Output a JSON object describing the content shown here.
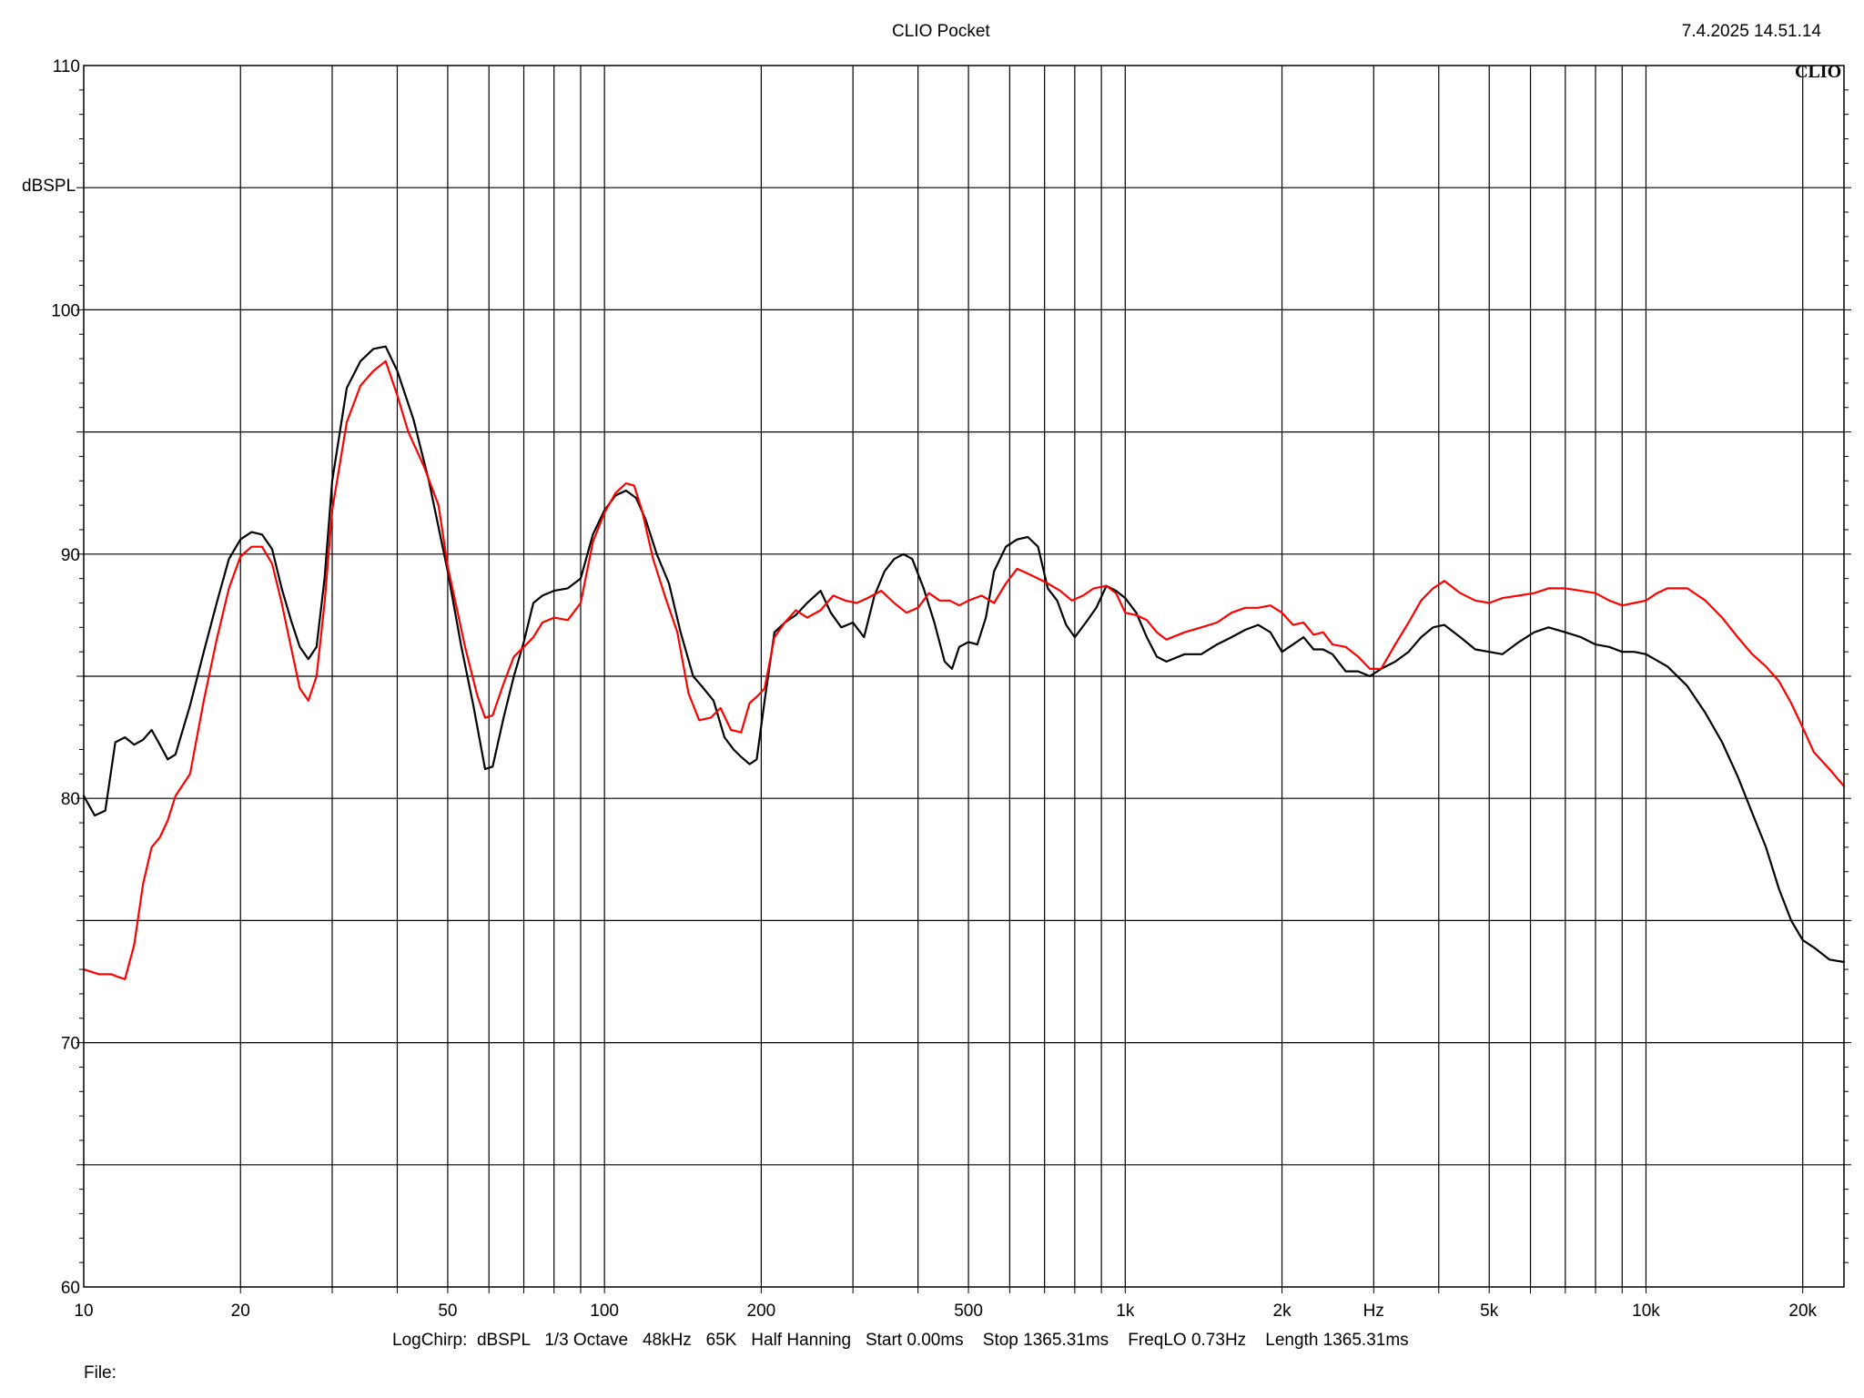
{
  "header": {
    "title": "CLIO Pocket",
    "timestamp": "7.4.2025 14.51.14",
    "logo": "CLIO"
  },
  "footer": {
    "settings": "LogChirp:  dBSPL   1/3 Octave   48kHz   65K   Half Hanning   Start 0.00ms    Stop 1365.31ms    FreqLO 0.73Hz    Length 1365.31ms",
    "file_label": "File:"
  },
  "colors": {
    "series_black": "#000000",
    "series_red": "#ff0000",
    "grid": "#000000"
  },
  "chart_data": {
    "type": "line",
    "title": "CLIO Pocket",
    "xlabel": "Hz",
    "ylabel": "dBSPL",
    "xscale": "log",
    "xlim": [
      10,
      24000
    ],
    "ylim": [
      60,
      110
    ],
    "grid": true,
    "x_ticks": [
      {
        "v": 10,
        "label": "10"
      },
      {
        "v": 20,
        "label": "20"
      },
      {
        "v": 50,
        "label": "50"
      },
      {
        "v": 100,
        "label": "100"
      },
      {
        "v": 200,
        "label": "200"
      },
      {
        "v": 500,
        "label": "500"
      },
      {
        "v": 1000,
        "label": "1k"
      },
      {
        "v": 2000,
        "label": "2k"
      },
      {
        "v": 5000,
        "label": "5k"
      },
      {
        "v": 10000,
        "label": "10k"
      },
      {
        "v": 20000,
        "label": "20k"
      }
    ],
    "x_unit_label": "Hz",
    "x_unit_label_at": 3000,
    "y_ticks": [
      60,
      70,
      80,
      90,
      100,
      110
    ],
    "series": [
      {
        "color": "#000000",
        "points": [
          [
            10,
            80.1
          ],
          [
            10.5,
            79.3
          ],
          [
            11,
            79.5
          ],
          [
            11.5,
            82.3
          ],
          [
            12,
            82.5
          ],
          [
            12.5,
            82.2
          ],
          [
            13,
            82.4
          ],
          [
            13.5,
            82.8
          ],
          [
            14,
            82.2
          ],
          [
            14.5,
            81.6
          ],
          [
            15,
            81.8
          ],
          [
            16,
            83.8
          ],
          [
            17,
            86
          ],
          [
            18,
            88
          ],
          [
            19,
            89.8
          ],
          [
            20,
            90.6
          ],
          [
            21,
            90.9
          ],
          [
            22,
            90.8
          ],
          [
            23,
            90.2
          ],
          [
            24,
            88.6
          ],
          [
            25,
            87.3
          ],
          [
            26,
            86.2
          ],
          [
            27,
            85.7
          ],
          [
            28,
            86.2
          ],
          [
            29,
            89
          ],
          [
            30,
            93
          ],
          [
            32,
            96.8
          ],
          [
            34,
            97.9
          ],
          [
            36,
            98.4
          ],
          [
            38,
            98.5
          ],
          [
            40,
            97.5
          ],
          [
            43,
            95.5
          ],
          [
            46,
            93
          ],
          [
            50,
            89.3
          ],
          [
            53,
            86.3
          ],
          [
            56,
            83.8
          ],
          [
            59,
            81.2
          ],
          [
            61,
            81.3
          ],
          [
            64,
            83.3
          ],
          [
            67,
            85
          ],
          [
            70,
            86.4
          ],
          [
            73,
            88
          ],
          [
            76,
            88.3
          ],
          [
            80,
            88.5
          ],
          [
            85,
            88.6
          ],
          [
            90,
            89
          ],
          [
            95,
            90.8
          ],
          [
            100,
            91.8
          ],
          [
            105,
            92.4
          ],
          [
            110,
            92.6
          ],
          [
            115,
            92.3
          ],
          [
            120,
            91.4
          ],
          [
            126,
            90
          ],
          [
            133,
            88.8
          ],
          [
            140,
            86.8
          ],
          [
            148,
            85
          ],
          [
            155,
            84.5
          ],
          [
            162,
            84
          ],
          [
            170,
            82.5
          ],
          [
            177,
            82
          ],
          [
            183,
            81.7
          ],
          [
            190,
            81.4
          ],
          [
            196,
            81.6
          ],
          [
            203,
            84
          ],
          [
            212,
            86.8
          ],
          [
            222,
            87.2
          ],
          [
            233,
            87.5
          ],
          [
            245,
            88
          ],
          [
            260,
            88.5
          ],
          [
            272,
            87.6
          ],
          [
            285,
            87
          ],
          [
            300,
            87.2
          ],
          [
            315,
            86.6
          ],
          [
            330,
            88.3
          ],
          [
            345,
            89.3
          ],
          [
            360,
            89.8
          ],
          [
            375,
            90
          ],
          [
            390,
            89.8
          ],
          [
            410,
            88.6
          ],
          [
            430,
            87.2
          ],
          [
            450,
            85.6
          ],
          [
            465,
            85.3
          ],
          [
            480,
            86.2
          ],
          [
            500,
            86.4
          ],
          [
            520,
            86.3
          ],
          [
            540,
            87.4
          ],
          [
            560,
            89.3
          ],
          [
            590,
            90.3
          ],
          [
            620,
            90.6
          ],
          [
            650,
            90.7
          ],
          [
            680,
            90.3
          ],
          [
            710,
            88.6
          ],
          [
            740,
            88.1
          ],
          [
            770,
            87.1
          ],
          [
            800,
            86.6
          ],
          [
            840,
            87.2
          ],
          [
            880,
            87.8
          ],
          [
            920,
            88.7
          ],
          [
            960,
            88.5
          ],
          [
            1000,
            88.2
          ],
          [
            1050,
            87.6
          ],
          [
            1100,
            86.6
          ],
          [
            1150,
            85.8
          ],
          [
            1200,
            85.6
          ],
          [
            1300,
            85.9
          ],
          [
            1400,
            85.9
          ],
          [
            1500,
            86.3
          ],
          [
            1600,
            86.6
          ],
          [
            1700,
            86.9
          ],
          [
            1800,
            87.1
          ],
          [
            1900,
            86.8
          ],
          [
            2000,
            86
          ],
          [
            2100,
            86.3
          ],
          [
            2200,
            86.6
          ],
          [
            2300,
            86.1
          ],
          [
            2400,
            86.1
          ],
          [
            2500,
            85.9
          ],
          [
            2650,
            85.2
          ],
          [
            2800,
            85.2
          ],
          [
            2950,
            85
          ],
          [
            3100,
            85.3
          ],
          [
            3300,
            85.6
          ],
          [
            3500,
            86
          ],
          [
            3700,
            86.6
          ],
          [
            3900,
            87
          ],
          [
            4100,
            87.1
          ],
          [
            4400,
            86.6
          ],
          [
            4700,
            86.1
          ],
          [
            5000,
            86
          ],
          [
            5300,
            85.9
          ],
          [
            5700,
            86.4
          ],
          [
            6100,
            86.8
          ],
          [
            6500,
            87
          ],
          [
            7000,
            86.8
          ],
          [
            7500,
            86.6
          ],
          [
            8000,
            86.3
          ],
          [
            8500,
            86.2
          ],
          [
            9000,
            86
          ],
          [
            9500,
            86
          ],
          [
            10000,
            85.9
          ],
          [
            11000,
            85.4
          ],
          [
            12000,
            84.6
          ],
          [
            13000,
            83.5
          ],
          [
            14000,
            82.3
          ],
          [
            15000,
            80.9
          ],
          [
            16000,
            79.4
          ],
          [
            17000,
            78
          ],
          [
            18000,
            76.3
          ],
          [
            19000,
            75
          ],
          [
            20000,
            74.2
          ],
          [
            21000,
            73.9
          ],
          [
            22500,
            73.4
          ],
          [
            24000,
            73.3
          ]
        ]
      },
      {
        "color": "#ff0000",
        "points": [
          [
            10,
            73
          ],
          [
            10.7,
            72.8
          ],
          [
            11.3,
            72.8
          ],
          [
            11.6,
            72.7
          ],
          [
            12,
            72.6
          ],
          [
            12.5,
            74
          ],
          [
            13,
            76.5
          ],
          [
            13.5,
            78
          ],
          [
            14,
            78.4
          ],
          [
            14.5,
            79.1
          ],
          [
            15,
            80.1
          ],
          [
            16,
            81
          ],
          [
            17,
            84
          ],
          [
            18,
            86.5
          ],
          [
            19,
            88.6
          ],
          [
            20,
            89.9
          ],
          [
            21,
            90.3
          ],
          [
            22,
            90.3
          ],
          [
            23,
            89.6
          ],
          [
            24,
            88
          ],
          [
            25,
            86.2
          ],
          [
            26,
            84.5
          ],
          [
            27,
            84
          ],
          [
            28,
            85
          ],
          [
            29,
            88
          ],
          [
            30,
            91.8
          ],
          [
            32,
            95.4
          ],
          [
            34,
            96.9
          ],
          [
            36,
            97.5
          ],
          [
            38,
            97.9
          ],
          [
            40,
            96.5
          ],
          [
            42,
            95
          ],
          [
            45,
            93.6
          ],
          [
            48,
            92
          ],
          [
            50,
            89.5
          ],
          [
            54,
            86.2
          ],
          [
            57,
            84.2
          ],
          [
            59,
            83.3
          ],
          [
            61,
            83.4
          ],
          [
            64,
            84.7
          ],
          [
            67,
            85.8
          ],
          [
            70,
            86.2
          ],
          [
            73,
            86.6
          ],
          [
            76,
            87.2
          ],
          [
            80,
            87.4
          ],
          [
            85,
            87.3
          ],
          [
            90,
            88
          ],
          [
            95,
            90.5
          ],
          [
            100,
            91.7
          ],
          [
            105,
            92.5
          ],
          [
            110,
            92.9
          ],
          [
            114,
            92.8
          ],
          [
            118,
            91.8
          ],
          [
            124,
            89.8
          ],
          [
            131,
            88.2
          ],
          [
            138,
            86.8
          ],
          [
            145,
            84.3
          ],
          [
            152,
            83.2
          ],
          [
            160,
            83.3
          ],
          [
            167,
            83.7
          ],
          [
            175,
            82.8
          ],
          [
            183,
            82.7
          ],
          [
            190,
            83.9
          ],
          [
            197,
            84.2
          ],
          [
            203,
            84.5
          ],
          [
            212,
            86.6
          ],
          [
            222,
            87.2
          ],
          [
            233,
            87.7
          ],
          [
            245,
            87.4
          ],
          [
            260,
            87.7
          ],
          [
            275,
            88.3
          ],
          [
            290,
            88.1
          ],
          [
            305,
            88
          ],
          [
            320,
            88.2
          ],
          [
            340,
            88.5
          ],
          [
            360,
            88
          ],
          [
            380,
            87.6
          ],
          [
            400,
            87.8
          ],
          [
            420,
            88.4
          ],
          [
            440,
            88.1
          ],
          [
            460,
            88.1
          ],
          [
            480,
            87.9
          ],
          [
            500,
            88.1
          ],
          [
            530,
            88.3
          ],
          [
            560,
            88
          ],
          [
            590,
            88.8
          ],
          [
            620,
            89.4
          ],
          [
            650,
            89.2
          ],
          [
            680,
            89
          ],
          [
            710,
            88.8
          ],
          [
            750,
            88.5
          ],
          [
            790,
            88.1
          ],
          [
            830,
            88.3
          ],
          [
            870,
            88.6
          ],
          [
            920,
            88.7
          ],
          [
            960,
            88.4
          ],
          [
            1000,
            87.6
          ],
          [
            1050,
            87.5
          ],
          [
            1100,
            87.3
          ],
          [
            1150,
            86.8
          ],
          [
            1200,
            86.5
          ],
          [
            1300,
            86.8
          ],
          [
            1400,
            87
          ],
          [
            1500,
            87.2
          ],
          [
            1600,
            87.6
          ],
          [
            1700,
            87.8
          ],
          [
            1800,
            87.8
          ],
          [
            1900,
            87.9
          ],
          [
            2000,
            87.6
          ],
          [
            2100,
            87.1
          ],
          [
            2200,
            87.2
          ],
          [
            2300,
            86.7
          ],
          [
            2400,
            86.8
          ],
          [
            2500,
            86.3
          ],
          [
            2650,
            86.2
          ],
          [
            2800,
            85.8
          ],
          [
            2950,
            85.3
          ],
          [
            3100,
            85.3
          ],
          [
            3300,
            86.3
          ],
          [
            3500,
            87.2
          ],
          [
            3700,
            88.1
          ],
          [
            3900,
            88.6
          ],
          [
            4100,
            88.9
          ],
          [
            4400,
            88.4
          ],
          [
            4700,
            88.1
          ],
          [
            5000,
            88
          ],
          [
            5300,
            88.2
          ],
          [
            5700,
            88.3
          ],
          [
            6100,
            88.4
          ],
          [
            6500,
            88.6
          ],
          [
            7000,
            88.6
          ],
          [
            7500,
            88.5
          ],
          [
            8000,
            88.4
          ],
          [
            8500,
            88.1
          ],
          [
            9000,
            87.9
          ],
          [
            9500,
            88
          ],
          [
            10000,
            88.1
          ],
          [
            10500,
            88.4
          ],
          [
            11000,
            88.6
          ],
          [
            12000,
            88.6
          ],
          [
            13000,
            88.1
          ],
          [
            14000,
            87.4
          ],
          [
            15000,
            86.6
          ],
          [
            16000,
            85.9
          ],
          [
            17000,
            85.4
          ],
          [
            18000,
            84.8
          ],
          [
            19000,
            83.9
          ],
          [
            20000,
            82.9
          ],
          [
            21000,
            81.9
          ],
          [
            22500,
            81.2
          ],
          [
            24000,
            80.5
          ]
        ]
      }
    ]
  }
}
